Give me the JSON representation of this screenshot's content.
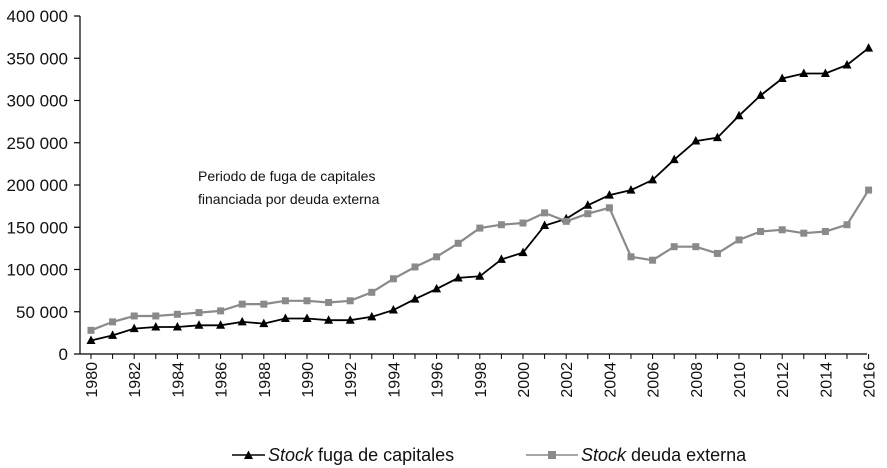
{
  "chart_data": {
    "type": "line",
    "title": "",
    "xlabel": "",
    "ylabel": "",
    "ylim": [
      0,
      400000
    ],
    "xlim": [
      1980,
      2016
    ],
    "yticks": [
      0,
      50000,
      100000,
      150000,
      200000,
      250000,
      300000,
      350000,
      400000
    ],
    "ytick_labels": [
      "0",
      "50 000",
      "100 000",
      "150 000",
      "200 000",
      "250 000",
      "300 000",
      "350 000",
      "400 000"
    ],
    "xtick_labels": [
      "1980",
      "1982",
      "1984",
      "1986",
      "1988",
      "1990",
      "1992",
      "1994",
      "1996",
      "1998",
      "2000",
      "2002",
      "2004",
      "2006",
      "2008",
      "2010",
      "2012",
      "2014",
      "2016"
    ],
    "grid": false,
    "annotation_lines": [
      "Periodo de fuga de capitales",
      "financiada por deuda externa"
    ],
    "legend_position": "bottom",
    "series": [
      {
        "name_italic": "Stock",
        "name_rest": " fuga de capitales",
        "marker": "triangle",
        "color": "#000000",
        "x": [
          1980,
          1981,
          1982,
          1983,
          1984,
          1985,
          1986,
          1987,
          1988,
          1989,
          1990,
          1991,
          1992,
          1993,
          1994,
          1995,
          1996,
          1997,
          1998,
          1999,
          2000,
          2001,
          2002,
          2003,
          2004,
          2005,
          2006,
          2007,
          2008,
          2009,
          2010,
          2011,
          2012,
          2013,
          2014,
          2015,
          2016
        ],
        "values": [
          16000,
          22000,
          30000,
          32000,
          32000,
          34000,
          34000,
          38000,
          36000,
          42000,
          42000,
          40000,
          40000,
          44000,
          52000,
          65000,
          77000,
          90000,
          92000,
          112000,
          120000,
          152000,
          160000,
          176000,
          188000,
          194000,
          206000,
          230000,
          252000,
          256000,
          282000,
          306000,
          326000,
          332000,
          332000,
          342000,
          362000
        ]
      },
      {
        "name_italic": "Stock",
        "name_rest": " deuda externa",
        "marker": "square",
        "color": "#8a8a8a",
        "x": [
          1980,
          1981,
          1982,
          1983,
          1984,
          1985,
          1986,
          1987,
          1988,
          1989,
          1990,
          1991,
          1992,
          1993,
          1994,
          1995,
          1996,
          1997,
          1998,
          1999,
          2000,
          2001,
          2002,
          2003,
          2004,
          2005,
          2006,
          2007,
          2008,
          2009,
          2010,
          2011,
          2012,
          2013,
          2014,
          2015,
          2016
        ],
        "values": [
          28000,
          38000,
          45000,
          45000,
          47000,
          49000,
          51000,
          59000,
          59000,
          63000,
          63000,
          61000,
          63000,
          73000,
          89000,
          103000,
          115000,
          131000,
          149000,
          153000,
          155000,
          167000,
          157000,
          166000,
          173000,
          115000,
          111000,
          127000,
          127000,
          119000,
          135000,
          145000,
          147000,
          143000,
          145000,
          153000,
          194000
        ]
      }
    ]
  }
}
